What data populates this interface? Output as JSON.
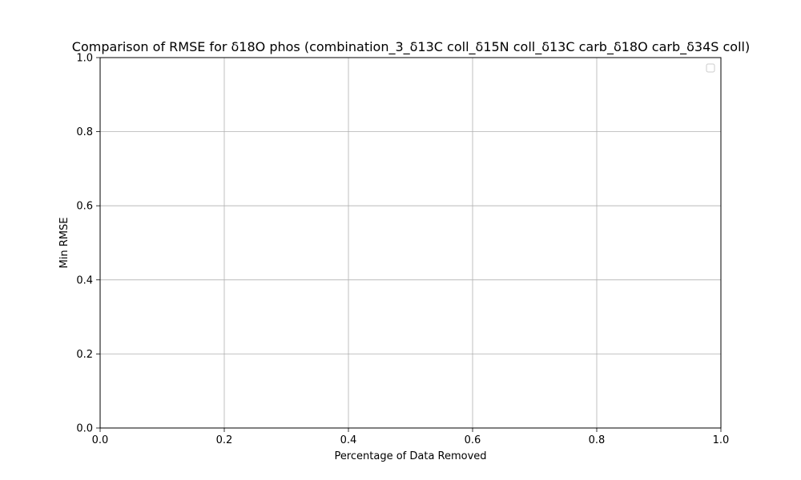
{
  "chart_data": {
    "type": "line",
    "title": "Comparison of RMSE for δ18O phos (combination_3_δ13C coll_δ15N coll_δ13C carb_δ18O carb_δ34S coll)",
    "xlabel": "Percentage of Data Removed",
    "ylabel": "Min RMSE",
    "xlim": [
      0,
      1
    ],
    "ylim": [
      0,
      1
    ],
    "xticks": [
      "0.0",
      "0.2",
      "0.4",
      "0.6",
      "0.8",
      "1.0"
    ],
    "yticks": [
      "0.0",
      "0.2",
      "0.4",
      "0.6",
      "0.8",
      "1.0"
    ],
    "grid": true,
    "legend_placement": "top-right",
    "series": []
  }
}
